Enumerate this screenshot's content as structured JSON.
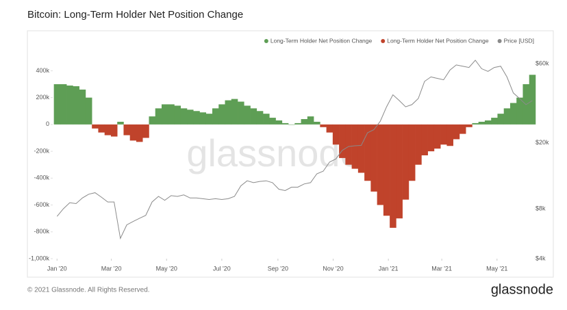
{
  "chart_data": {
    "type": "bar",
    "title": "Bitcoin: Long-Term Holder Net Position Change",
    "watermark": "glassnode",
    "footer": "© 2021 Glassnode. All Rights Reserved.",
    "logo": "glassnode",
    "x": [
      0,
      7,
      14,
      21,
      28,
      35,
      42,
      49,
      56,
      63,
      70,
      77,
      84,
      91,
      98,
      105,
      112,
      119,
      126,
      133,
      140,
      147,
      154,
      161,
      168,
      175,
      182,
      189,
      196,
      203,
      210,
      217,
      224,
      231,
      238,
      245,
      252,
      259,
      266,
      273,
      280,
      287,
      294,
      301,
      308,
      315,
      322,
      329,
      336,
      343,
      350,
      357,
      364,
      371,
      378,
      385,
      392,
      399,
      406,
      413,
      420,
      427,
      434,
      441,
      448,
      455,
      462,
      469,
      476,
      483,
      490,
      497,
      504,
      511,
      518,
      525
    ],
    "xlim": [
      -4,
      527
    ],
    "xticks": [
      {
        "value": 0,
        "label": "Jan '20"
      },
      {
        "value": 60,
        "label": "Mar '20"
      },
      {
        "value": 121,
        "label": "May '20"
      },
      {
        "value": 182,
        "label": "Jul '20"
      },
      {
        "value": 244,
        "label": "Sep '20"
      },
      {
        "value": 305,
        "label": "Nov '20"
      },
      {
        "value": 366,
        "label": "Jan '21"
      },
      {
        "value": 425,
        "label": "Mar '21"
      },
      {
        "value": 486,
        "label": "May '21"
      }
    ],
    "ylim": [
      -1000000,
      550000
    ],
    "yticks": [
      {
        "value": 400000,
        "label": "400k"
      },
      {
        "value": 200000,
        "label": "200k"
      },
      0,
      {
        "value": -200000,
        "label": "-200k"
      },
      {
        "value": -400000,
        "label": "-400k"
      },
      {
        "value": -600000,
        "label": "-600k"
      },
      {
        "value": -800000,
        "label": "-800k"
      },
      {
        "value": -1000000,
        "label": "-1,000k"
      }
    ],
    "y2lim": [
      4000,
      72000
    ],
    "y2scale": "log",
    "y2ticks": [
      {
        "value": 60000,
        "label": "$60k"
      },
      {
        "value": 20000,
        "label": "$20k"
      },
      {
        "value": 8000,
        "label": "$8k"
      },
      {
        "value": 4000,
        "label": "$4k"
      }
    ],
    "series": [
      {
        "name": "Long-Term Holder Net Position Change",
        "color": "#5e9e55",
        "values": [
          300000,
          300000,
          290000,
          285000,
          260000,
          200000,
          null,
          null,
          null,
          null,
          20000,
          null,
          null,
          null,
          null,
          60000,
          120000,
          150000,
          150000,
          140000,
          120000,
          110000,
          100000,
          90000,
          80000,
          120000,
          150000,
          180000,
          190000,
          170000,
          140000,
          120000,
          100000,
          80000,
          50000,
          30000,
          10000,
          0,
          10000,
          40000,
          60000,
          20000,
          null,
          null,
          null,
          null,
          null,
          null,
          null,
          null,
          null,
          null,
          null,
          null,
          null,
          null,
          null,
          null,
          null,
          null,
          null,
          null,
          null,
          null,
          null,
          null,
          10000,
          20000,
          30000,
          50000,
          80000,
          120000,
          160000,
          200000,
          300000,
          370000
        ]
      },
      {
        "name": "Long-Term Holder Net Position Change",
        "color": "#c0432b",
        "values": [
          null,
          null,
          null,
          null,
          null,
          null,
          -30000,
          -60000,
          -80000,
          -90000,
          null,
          -80000,
          -120000,
          -130000,
          -100000,
          null,
          null,
          null,
          null,
          null,
          null,
          null,
          null,
          null,
          null,
          null,
          null,
          null,
          null,
          null,
          null,
          null,
          null,
          null,
          null,
          null,
          null,
          null,
          null,
          null,
          null,
          null,
          -20000,
          -60000,
          -150000,
          -250000,
          -300000,
          -330000,
          -360000,
          -420000,
          -500000,
          -600000,
          -680000,
          -770000,
          -700000,
          -560000,
          -420000,
          -300000,
          -230000,
          -200000,
          -180000,
          -150000,
          -160000,
          -110000,
          -70000,
          -20000,
          null,
          null,
          null,
          null,
          null,
          null,
          null,
          null,
          null,
          null
        ]
      },
      {
        "name": "Price [USD]",
        "color": "#8a8a8a",
        "axis": "y2",
        "type": "line",
        "values": [
          7200,
          8000,
          8700,
          8600,
          9300,
          9800,
          10000,
          9400,
          8800,
          8800,
          5300,
          6400,
          6700,
          7000,
          7300,
          8800,
          9500,
          9000,
          9600,
          9500,
          9700,
          9300,
          9300,
          9200,
          9100,
          9200,
          9100,
          9200,
          9500,
          11000,
          11800,
          11500,
          11700,
          11800,
          11500,
          10500,
          10300,
          10800,
          10800,
          11300,
          11500,
          13000,
          13500,
          15300,
          16000,
          18000,
          19000,
          19200,
          19300,
          23000,
          24000,
          27000,
          33000,
          39000,
          36000,
          33000,
          34000,
          37000,
          47000,
          50000,
          49000,
          48000,
          55000,
          59000,
          58000,
          57000,
          63000,
          56000,
          54000,
          57000,
          58000,
          50000,
          40000,
          37000,
          34000,
          36000
        ]
      }
    ]
  }
}
